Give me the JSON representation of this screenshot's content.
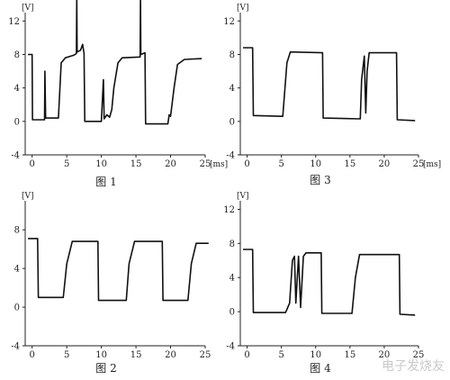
{
  "chart_data": [
    {
      "type": "line",
      "caption": "图 1",
      "ylabel": "[V]",
      "xlabel": "[ms]",
      "xlim": [
        -1,
        25
      ],
      "ylim": [
        -4,
        13
      ],
      "xticks": [
        "0",
        "5",
        "10",
        "15",
        "20",
        "25"
      ],
      "yticks": [
        "-4",
        "0",
        "4",
        "8",
        "12"
      ],
      "points": [
        [
          -0.6,
          8
        ],
        [
          0,
          8
        ],
        [
          0.05,
          0.2
        ],
        [
          1.8,
          0.2
        ],
        [
          1.85,
          6
        ],
        [
          1.95,
          0.4
        ],
        [
          3.8,
          0.4
        ],
        [
          4.2,
          7
        ],
        [
          4.8,
          7.6
        ],
        [
          6,
          7.9
        ],
        [
          6.4,
          8.1
        ],
        [
          6.45,
          15
        ],
        [
          6.5,
          8.3
        ],
        [
          7,
          8.5
        ],
        [
          7.3,
          9.2
        ],
        [
          7.5,
          8.1
        ],
        [
          7.6,
          0
        ],
        [
          10,
          0
        ],
        [
          10.3,
          5
        ],
        [
          10.4,
          0.3
        ],
        [
          10.8,
          0.8
        ],
        [
          11.2,
          0.5
        ],
        [
          11.5,
          1.4
        ],
        [
          11.8,
          4
        ],
        [
          12.4,
          7
        ],
        [
          13,
          7.6
        ],
        [
          15.6,
          7.7
        ],
        [
          15.65,
          15
        ],
        [
          15.7,
          8
        ],
        [
          16.3,
          8.2
        ],
        [
          16.4,
          -0.3
        ],
        [
          19.6,
          -0.3
        ],
        [
          19.8,
          0.8
        ],
        [
          20,
          0.6
        ],
        [
          20.5,
          4
        ],
        [
          21,
          6.8
        ],
        [
          22,
          7.4
        ],
        [
          24.5,
          7.5
        ]
      ]
    },
    {
      "type": "line",
      "caption": "图 3",
      "ylabel": "[V]",
      "xlabel": "[ms]",
      "xlim": [
        -1,
        25
      ],
      "ylim": [
        -4,
        13
      ],
      "xticks": [
        "0",
        "5",
        "10",
        "15",
        "20",
        "25"
      ],
      "yticks": [
        "-4",
        "0",
        "4",
        "8",
        "12"
      ],
      "points": [
        [
          -0.6,
          8.8
        ],
        [
          0.8,
          8.8
        ],
        [
          0.9,
          0.7
        ],
        [
          5.2,
          0.6
        ],
        [
          5.8,
          7
        ],
        [
          6.3,
          8.3
        ],
        [
          11,
          8.2
        ],
        [
          11.1,
          0.4
        ],
        [
          16.5,
          0.3
        ],
        [
          16.7,
          5
        ],
        [
          17.1,
          7.8
        ],
        [
          17.3,
          1
        ],
        [
          17.5,
          6
        ],
        [
          17.8,
          8.2
        ],
        [
          21.8,
          8.2
        ],
        [
          21.9,
          0.2
        ],
        [
          24.5,
          0.1
        ]
      ]
    },
    {
      "type": "line",
      "caption": "图 2",
      "ylabel": "[V]",
      "xlabel": "",
      "xlim": [
        -1,
        25
      ],
      "ylim": [
        -4,
        11
      ],
      "xticks": [
        "0",
        "5",
        "10",
        "15",
        "20",
        "25"
      ],
      "yticks": [
        "-4",
        "0",
        "4",
        "8"
      ],
      "points": [
        [
          -0.6,
          7.1
        ],
        [
          0.8,
          7.1
        ],
        [
          0.9,
          1
        ],
        [
          4.5,
          1
        ],
        [
          5,
          4.5
        ],
        [
          5.8,
          6.8
        ],
        [
          9.5,
          6.8
        ],
        [
          9.6,
          0.7
        ],
        [
          13.6,
          0.7
        ],
        [
          14,
          4.5
        ],
        [
          14.8,
          6.8
        ],
        [
          18.8,
          6.8
        ],
        [
          18.9,
          0.7
        ],
        [
          22.5,
          0.7
        ],
        [
          23,
          4.5
        ],
        [
          23.7,
          6.6
        ],
        [
          25.5,
          6.6
        ]
      ]
    },
    {
      "type": "line",
      "caption": "图 4",
      "ylabel": "[V]",
      "xlabel": "",
      "xlim": [
        -1,
        25
      ],
      "ylim": [
        -4,
        13
      ],
      "xticks": [
        "0",
        "5",
        "10",
        "15",
        "20",
        "25"
      ],
      "yticks": [
        "-4",
        "0",
        "4",
        "8",
        "12"
      ],
      "points": [
        [
          -0.6,
          7.3
        ],
        [
          0.8,
          7.3
        ],
        [
          0.9,
          -0.1
        ],
        [
          5.6,
          -0.1
        ],
        [
          6.2,
          1
        ],
        [
          6.6,
          6
        ],
        [
          6.9,
          6.5
        ],
        [
          7.1,
          1
        ],
        [
          7.5,
          6.5
        ],
        [
          7.8,
          0.5
        ],
        [
          8.2,
          6.5
        ],
        [
          8.6,
          6.9
        ],
        [
          10.8,
          6.9
        ],
        [
          10.9,
          -0.2
        ],
        [
          15.3,
          -0.2
        ],
        [
          15.8,
          4
        ],
        [
          16.4,
          6.7
        ],
        [
          22.2,
          6.7
        ],
        [
          22.3,
          -0.3
        ],
        [
          24.5,
          -0.4
        ]
      ]
    }
  ],
  "watermark": "电子发烧友"
}
